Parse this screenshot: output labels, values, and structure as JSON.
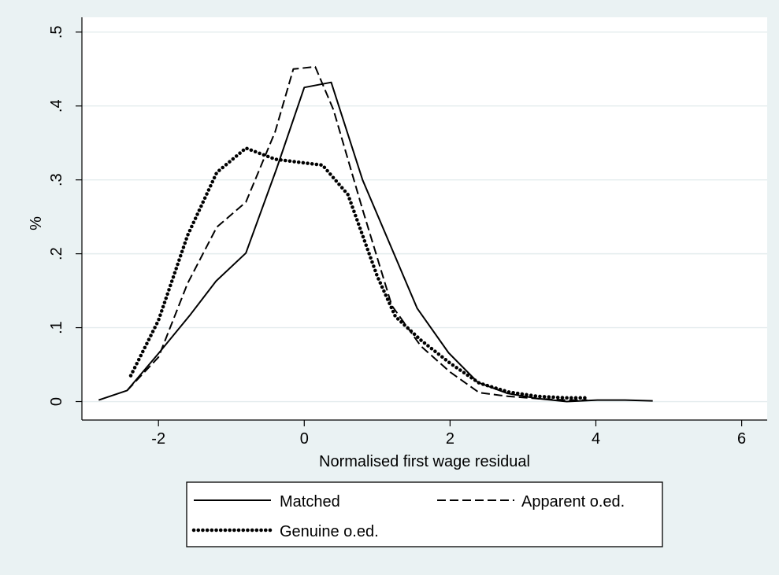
{
  "chart_data": {
    "type": "line",
    "title": "",
    "xlabel": "Normalised first wage residual",
    "ylabel": "%",
    "xlim": [
      -3.05,
      6.35
    ],
    "ylim": [
      -0.025,
      0.52
    ],
    "x_ticks": [
      -2,
      0,
      2,
      4,
      6
    ],
    "x_tick_labels": [
      "-2",
      "0",
      "2",
      "4",
      "6"
    ],
    "y_ticks": [
      0,
      0.1,
      0.2,
      0.3,
      0.4,
      0.5
    ],
    "y_tick_labels": [
      "0",
      ".1",
      ".2",
      ".3",
      ".4",
      ".5"
    ],
    "grid": true,
    "legend_position": "bottom",
    "series": [
      {
        "name": "Matched",
        "style": "solid",
        "x": [
          -2.82,
          -2.43,
          -2.0,
          -1.56,
          -1.21,
          -0.8,
          -0.38,
          0.0,
          0.37,
          0.8,
          1.55,
          1.98,
          2.38,
          2.79,
          3.21,
          3.6,
          4.02,
          4.4,
          4.78
        ],
        "y": [
          0.002,
          0.015,
          0.065,
          0.118,
          0.163,
          0.201,
          0.315,
          0.425,
          0.432,
          0.3,
          0.126,
          0.066,
          0.026,
          0.011,
          0.004,
          0.0,
          0.002,
          0.002,
          0.001
        ]
      },
      {
        "name": "Apparent o.ed.",
        "style": "dashed",
        "x": [
          -2.43,
          -2.0,
          -1.6,
          -1.2,
          -0.8,
          -0.4,
          -0.15,
          0.15,
          0.4,
          0.8,
          1.2,
          1.6,
          2.0,
          2.4,
          2.8,
          3.2,
          3.6,
          3.88
        ],
        "y": [
          0.015,
          0.06,
          0.16,
          0.236,
          0.27,
          0.365,
          0.45,
          0.453,
          0.395,
          0.26,
          0.13,
          0.075,
          0.04,
          0.012,
          0.007,
          0.004,
          0.002,
          0.002
        ]
      },
      {
        "name": "Genuine o.ed.",
        "style": "dotted",
        "x": [
          -2.38,
          -2.0,
          -1.6,
          -1.2,
          -0.8,
          -0.4,
          0.0,
          0.25,
          0.6,
          1.0,
          1.25,
          1.6,
          2.0,
          2.4,
          2.8,
          3.2,
          3.6,
          3.88
        ],
        "y": [
          0.035,
          0.11,
          0.225,
          0.31,
          0.343,
          0.328,
          0.323,
          0.32,
          0.28,
          0.17,
          0.115,
          0.083,
          0.052,
          0.025,
          0.013,
          0.007,
          0.005,
          0.005
        ]
      }
    ]
  }
}
